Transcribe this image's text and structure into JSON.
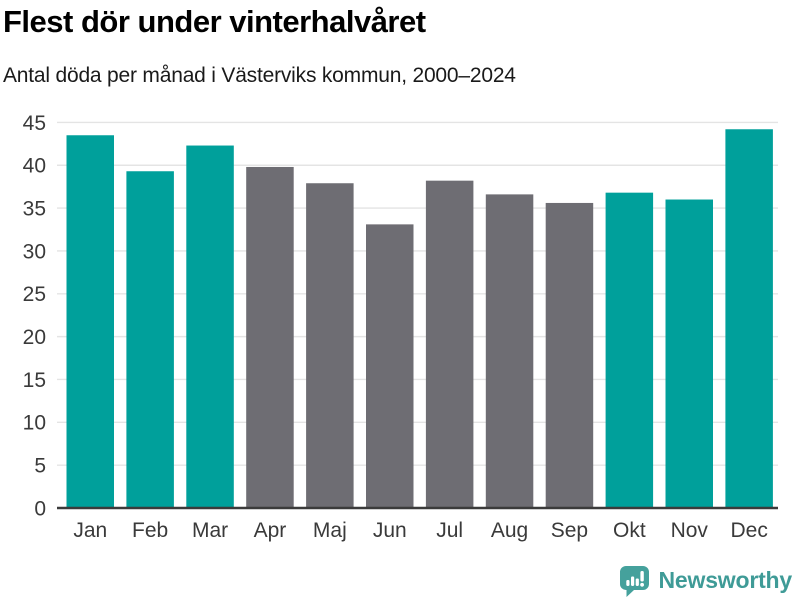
{
  "header": {
    "title": "Flest dör under vinterhalvåret",
    "subtitle": "Antal döda per månad i Västerviks kommun, 2000–2024"
  },
  "chart_data": {
    "type": "bar",
    "title": "Flest dör under vinterhalvåret",
    "subtitle": "Antal döda per månad i Västerviks kommun, 2000–2024",
    "categories": [
      "Jan",
      "Feb",
      "Mar",
      "Apr",
      "Maj",
      "Jun",
      "Jul",
      "Aug",
      "Sep",
      "Okt",
      "Nov",
      "Dec"
    ],
    "values": [
      43.5,
      39.3,
      42.3,
      39.8,
      37.9,
      33.1,
      38.2,
      36.6,
      35.6,
      36.8,
      36.0,
      44.2
    ],
    "highlighted": [
      true,
      true,
      true,
      false,
      false,
      false,
      false,
      false,
      false,
      true,
      true,
      true
    ],
    "xlabel": "",
    "ylabel": "",
    "ylim": [
      0,
      45
    ],
    "yticks": [
      0,
      5,
      10,
      15,
      20,
      25,
      30,
      35,
      40,
      45
    ],
    "grid": "horizontal",
    "legend": "none",
    "colors": {
      "highlight_bar": "#00A09B",
      "muted_bar": "#6E6D73",
      "gridline": "#E4E4E4",
      "axis_line": "#3B3B3B",
      "tick_label": "#3A3A3A"
    }
  },
  "footer": {
    "brand_label": "Newsworthy",
    "brand_text_color": "#3F9B97",
    "brand_icon_color": "#45A19C"
  }
}
